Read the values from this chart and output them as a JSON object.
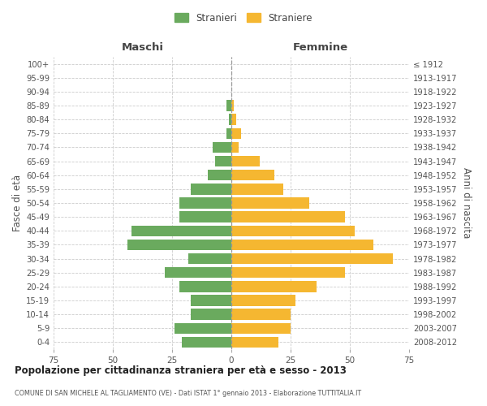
{
  "age_groups": [
    "0-4",
    "5-9",
    "10-14",
    "15-19",
    "20-24",
    "25-29",
    "30-34",
    "35-39",
    "40-44",
    "45-49",
    "50-54",
    "55-59",
    "60-64",
    "65-69",
    "70-74",
    "75-79",
    "80-84",
    "85-89",
    "90-94",
    "95-99",
    "100+"
  ],
  "birth_years": [
    "2008-2012",
    "2003-2007",
    "1998-2002",
    "1993-1997",
    "1988-1992",
    "1983-1987",
    "1978-1982",
    "1973-1977",
    "1968-1972",
    "1963-1967",
    "1958-1962",
    "1953-1957",
    "1948-1952",
    "1943-1947",
    "1938-1942",
    "1933-1937",
    "1928-1932",
    "1923-1927",
    "1918-1922",
    "1913-1917",
    "≤ 1912"
  ],
  "males": [
    21,
    24,
    17,
    17,
    22,
    28,
    18,
    44,
    42,
    22,
    22,
    17,
    10,
    7,
    8,
    2,
    1,
    2,
    0,
    0,
    0
  ],
  "females": [
    20,
    25,
    25,
    27,
    36,
    48,
    68,
    60,
    52,
    48,
    33,
    22,
    18,
    12,
    3,
    4,
    2,
    1,
    0,
    0,
    0
  ],
  "male_color": "#6aaa5e",
  "female_color": "#f5b731",
  "background_color": "#ffffff",
  "grid_color": "#cccccc",
  "title": "Popolazione per cittadinanza straniera per età e sesso - 2013",
  "subtitle": "COMUNE DI SAN MICHELE AL TAGLIAMENTO (VE) - Dati ISTAT 1° gennaio 2013 - Elaborazione TUTTITALIA.IT",
  "xlabel_left": "Maschi",
  "xlabel_right": "Femmine",
  "ylabel_left": "Fasce di età",
  "ylabel_right": "Anni di nascita",
  "legend_male": "Stranieri",
  "legend_female": "Straniere",
  "xlim": 75
}
